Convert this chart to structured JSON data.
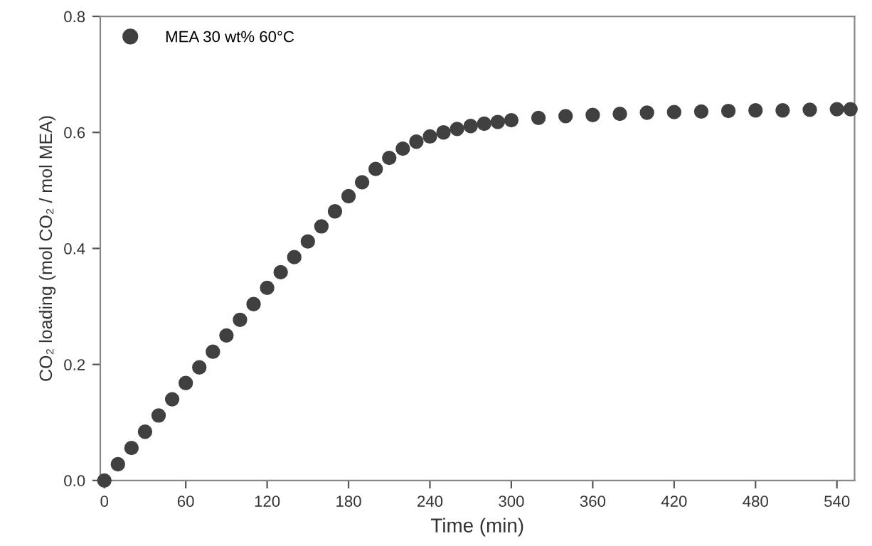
{
  "chart_data": {
    "type": "scatter",
    "xlabel": "Time (min)",
    "ylabel": "CO₂ loading (mol CO₂ / mol MEA)",
    "xlim": [
      -3,
      553
    ],
    "ylim": [
      0,
      0.8
    ],
    "xticks": [
      0,
      60,
      120,
      180,
      240,
      300,
      360,
      420,
      480,
      540
    ],
    "yticks": [
      {
        "value": 0,
        "label": "0.0"
      },
      {
        "value": 0.2,
        "label": "0.2"
      },
      {
        "value": 0.4,
        "label": "0.4"
      },
      {
        "value": 0.6,
        "label": "0.6"
      },
      {
        "value": 0.8,
        "label": "0.8"
      }
    ],
    "marker": "circle",
    "legend": "top left",
    "grid": false,
    "series": [
      {
        "name": "MEA 30 wt% 60°C",
        "color": "#404040",
        "x": [
          0,
          10,
          20,
          30,
          40,
          50,
          60,
          70,
          80,
          90,
          100,
          110,
          120,
          130,
          140,
          150,
          160,
          170,
          180,
          190,
          200,
          210,
          220,
          230,
          240,
          250,
          260,
          270,
          280,
          290,
          300,
          320,
          340,
          360,
          380,
          400,
          420,
          440,
          460,
          480,
          500,
          520,
          540,
          550
        ],
        "values": [
          0,
          0.028,
          0.056,
          0.084,
          0.112,
          0.14,
          0.168,
          0.195,
          0.222,
          0.25,
          0.277,
          0.304,
          0.332,
          0.359,
          0.385,
          0.412,
          0.438,
          0.464,
          0.49,
          0.514,
          0.537,
          0.556,
          0.572,
          0.584,
          0.593,
          0.6,
          0.606,
          0.611,
          0.615,
          0.618,
          0.621,
          0.625,
          0.628,
          0.63,
          0.632,
          0.634,
          0.635,
          0.636,
          0.637,
          0.638,
          0.638,
          0.639,
          0.64,
          0.64
        ]
      }
    ]
  }
}
